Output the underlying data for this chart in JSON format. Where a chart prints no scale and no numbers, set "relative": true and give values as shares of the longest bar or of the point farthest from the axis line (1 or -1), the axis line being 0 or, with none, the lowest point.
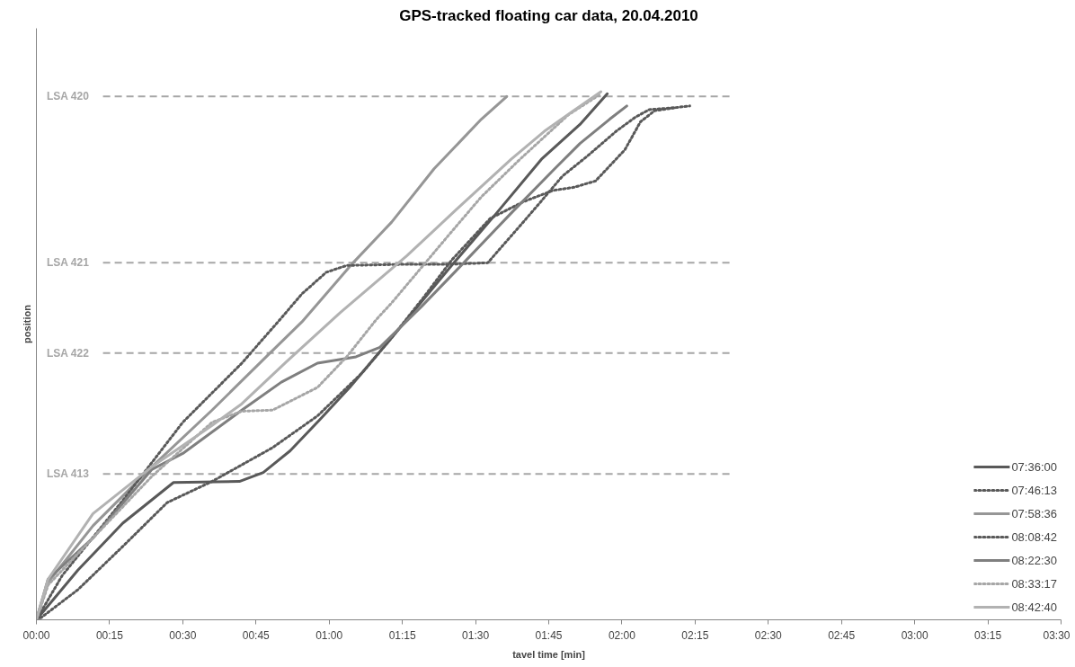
{
  "chart_data": {
    "type": "line",
    "title": "GPS-tracked floating car data, 20.04.2010",
    "xlabel": "tavel time [min]",
    "ylabel": "position",
    "relative": true,
    "grid": false,
    "legend": "bottom right",
    "tick_labels": "x",
    "xlim": [
      0,
      210
    ],
    "xticks": [
      {
        "value": 0,
        "label": "00:00"
      },
      {
        "value": 15,
        "label": "00:15"
      },
      {
        "value": 30,
        "label": "00:30"
      },
      {
        "value": 45,
        "label": "00:45"
      },
      {
        "value": 60,
        "label": "01:00"
      },
      {
        "value": 75,
        "label": "01:15"
      },
      {
        "value": 90,
        "label": "01:30"
      },
      {
        "value": 105,
        "label": "01:45"
      },
      {
        "value": 120,
        "label": "02:00"
      },
      {
        "value": 135,
        "label": "02:15"
      },
      {
        "value": 150,
        "label": "02:30"
      },
      {
        "value": 165,
        "label": "02:45"
      },
      {
        "value": 180,
        "label": "03:00"
      },
      {
        "value": 195,
        "label": "03:15"
      },
      {
        "value": 210,
        "label": "03:30"
      }
    ],
    "ref_lines": [
      {
        "axis": "y",
        "value": 0.991,
        "label": "LSA 420",
        "color": "#a6a6a6",
        "line_style": "dashed"
      },
      {
        "axis": "y",
        "value": 0.676,
        "label": "LSA 421",
        "color": "#a6a6a6",
        "line_style": "dashed"
      },
      {
        "axis": "y",
        "value": 0.505,
        "label": "LSA 422",
        "color": "#a6a6a6",
        "line_style": "dashed"
      },
      {
        "axis": "y",
        "value": 0.276,
        "label": "LSA 413",
        "color": "#a6a6a6",
        "line_style": "dashed"
      }
    ],
    "series": [
      {
        "name": "07:36:00",
        "color": "#595959",
        "line_style": "solid",
        "x": [
          0,
          8.5,
          17.7,
          28.1,
          41.6,
          46.5,
          52.0,
          58.1,
          64.2,
          72.8,
          85.1,
          94.3,
          103.5,
          111.4,
          117.0
        ],
        "values": [
          0,
          0.094,
          0.183,
          0.26,
          0.262,
          0.279,
          0.32,
          0.379,
          0.44,
          0.534,
          0.671,
          0.77,
          0.872,
          0.938,
          0.996
        ]
      },
      {
        "name": "07:46:13",
        "color": "#595959",
        "line_style": "dotted",
        "x": [
          0,
          1.1,
          8.5,
          17.7,
          26.8,
          36.0,
          48.4,
          57.6,
          66.8,
          72.8,
          79.3,
          85.1,
          93.0,
          99.9,
          105.9,
          110.2,
          114.6,
          120.6,
          123.8,
          126.7,
          131.1
        ],
        "values": [
          0,
          0.005,
          0.057,
          0.139,
          0.222,
          0.262,
          0.326,
          0.386,
          0.468,
          0.534,
          0.61,
          0.681,
          0.76,
          0.792,
          0.813,
          0.819,
          0.831,
          0.89,
          0.943,
          0.964,
          0.97
        ]
      },
      {
        "name": "07:58:36",
        "color": "#969696",
        "line_style": "solid",
        "x": [
          0,
          2.4,
          11.6,
          23.7,
          36.0,
          47.1,
          54.4,
          64.9,
          72.8,
          81.5,
          91.2,
          96.4
        ],
        "values": [
          0,
          0.071,
          0.178,
          0.29,
          0.397,
          0.498,
          0.564,
          0.676,
          0.753,
          0.854,
          0.948,
          0.991
        ]
      },
      {
        "name": "08:08:42",
        "color": "#595959",
        "line_style": "dotted",
        "x": [
          0,
          5.3,
          17.7,
          30.0,
          42.1,
          49.5,
          54.4,
          59.4,
          63.6,
          74.7,
          83.9,
          92.5,
          97.6,
          102.2,
          107.8,
          113.3,
          118.8,
          122.8,
          125.6,
          131.1,
          133.9
        ],
        "values": [
          0,
          0.084,
          0.226,
          0.374,
          0.486,
          0.564,
          0.617,
          0.658,
          0.671,
          0.673,
          0.673,
          0.676,
          0.73,
          0.779,
          0.84,
          0.881,
          0.925,
          0.952,
          0.966,
          0.97,
          0.973
        ]
      },
      {
        "name": "08:22:30",
        "color": "#7f7f7f",
        "line_style": "solid",
        "x": [
          0,
          2.4,
          11.6,
          23.7,
          30.0,
          42.1,
          50.2,
          57.6,
          65.5,
          70.4,
          78.9,
          88.1,
          97.3,
          105.9,
          111.4,
          117.5,
          121.0
        ],
        "values": [
          0,
          0.077,
          0.155,
          0.285,
          0.315,
          0.397,
          0.45,
          0.486,
          0.498,
          0.516,
          0.593,
          0.681,
          0.77,
          0.851,
          0.902,
          0.948,
          0.973
        ]
      },
      {
        "name": "08:33:17",
        "color": "#a6a6a6",
        "line_style": "dotted",
        "x": [
          0,
          2.4,
          11.6,
          23.7,
          36.0,
          42.1,
          48.4,
          57.6,
          63.6,
          69.7,
          72.8,
          85.1,
          91.2,
          99.1,
          109.0,
          115.7
        ],
        "values": [
          0,
          0.066,
          0.155,
          0.272,
          0.374,
          0.395,
          0.397,
          0.44,
          0.498,
          0.569,
          0.6,
          0.735,
          0.801,
          0.872,
          0.956,
          0.996
        ]
      },
      {
        "name": "08:42:40",
        "color": "#b2b2b2",
        "line_style": "solid",
        "x": [
          0,
          2.4,
          11.6,
          23.7,
          36.0,
          42.1,
          51.3,
          62.3,
          75.9,
          86.2,
          97.3,
          104.1,
          109.6,
          115.7
        ],
        "values": [
          0,
          0.077,
          0.201,
          0.29,
          0.368,
          0.409,
          0.489,
          0.582,
          0.689,
          0.778,
          0.872,
          0.925,
          0.961,
          1
        ]
      }
    ]
  }
}
